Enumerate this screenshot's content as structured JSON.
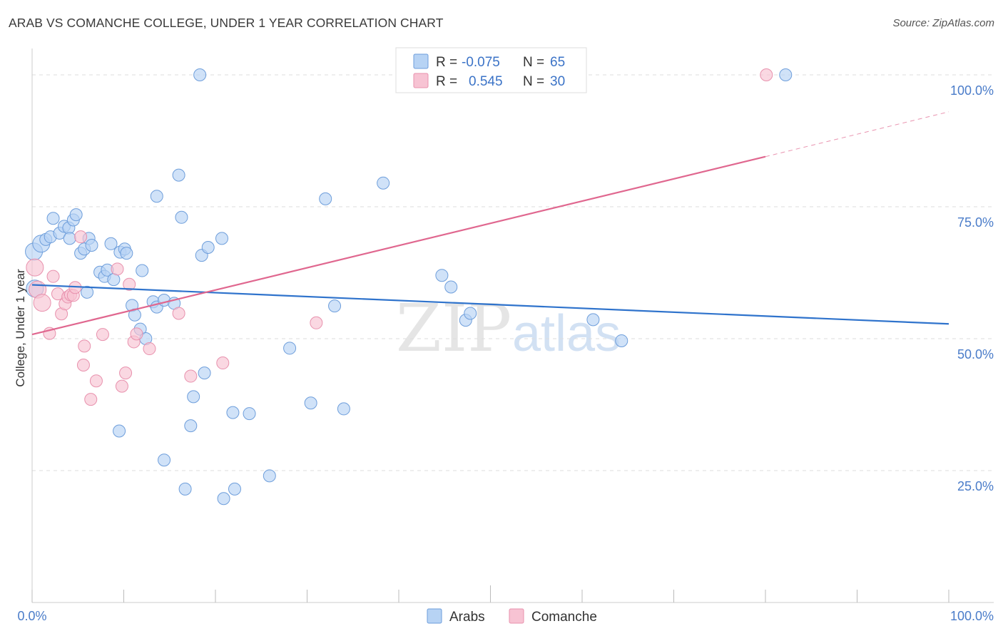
{
  "header": {
    "title": "ARAB VS COMANCHE COLLEGE, UNDER 1 YEAR CORRELATION CHART",
    "source": "Source: ZipAtlas.com"
  },
  "watermark": {
    "part1": "ZIP",
    "part2": "atlas"
  },
  "legend": {
    "r_label": "R =",
    "n_label": "N =",
    "arabs": {
      "r": "-0.075",
      "n": "65"
    },
    "comanche": {
      "r": "0.545",
      "n": "30"
    }
  },
  "bottom_legend": {
    "arabs": "Arabs",
    "comanche": "Comanche"
  },
  "colors": {
    "arabs_fill": "#b7d3f4",
    "arabs_stroke": "#6e9edb",
    "arabs_line": "#2f73cc",
    "comanche_fill": "#f7c3d3",
    "comanche_stroke": "#e891ad",
    "comanche_line": "#e0678f",
    "tick_text": "#4a7cc9",
    "grid": "#dddddd"
  },
  "chart_data": {
    "type": "scatter",
    "title": "ARAB VS COMANCHE COLLEGE, UNDER 1 YEAR CORRELATION CHART",
    "xlabel": "",
    "ylabel": "College, Under 1 year",
    "xlim": [
      0,
      100
    ],
    "ylim": [
      0,
      105
    ],
    "x_tick_labels": [
      "0.0%",
      "100.0%"
    ],
    "y_ticks": [
      25,
      50,
      75,
      100
    ],
    "y_tick_labels": [
      "25.0%",
      "50.0%",
      "75.0%",
      "100.0%"
    ],
    "grid": "horizontal dashed",
    "legend_placement": "top-center",
    "series": [
      {
        "name": "Arabs",
        "r": -0.075,
        "n": 65,
        "trend": {
          "x": [
            0,
            100
          ],
          "y": [
            60.2,
            52.8
          ]
        },
        "points": [
          [
            0.2,
            66.5
          ],
          [
            0.3,
            59.5
          ],
          [
            1.0,
            68.0
          ],
          [
            1.5,
            68.8
          ],
          [
            2.0,
            69.3
          ],
          [
            2.3,
            72.8
          ],
          [
            3.0,
            70.0
          ],
          [
            3.5,
            71.3
          ],
          [
            4.0,
            71.0
          ],
          [
            4.1,
            69.0
          ],
          [
            4.5,
            72.5
          ],
          [
            4.8,
            73.5
          ],
          [
            5.3,
            66.2
          ],
          [
            5.7,
            67.0
          ],
          [
            6.2,
            69.0
          ],
          [
            6.5,
            67.7
          ],
          [
            6.0,
            58.8
          ],
          [
            7.4,
            62.6
          ],
          [
            7.9,
            61.8
          ],
          [
            8.2,
            63.0
          ],
          [
            8.6,
            68.0
          ],
          [
            8.9,
            61.2
          ],
          [
            9.6,
            66.4
          ],
          [
            10.1,
            67.0
          ],
          [
            10.3,
            66.2
          ],
          [
            10.9,
            56.3
          ],
          [
            11.2,
            54.5
          ],
          [
            11.8,
            51.8
          ],
          [
            12.0,
            62.9
          ],
          [
            12.4,
            50.0
          ],
          [
            13.2,
            57.0
          ],
          [
            13.6,
            56.0
          ],
          [
            14.4,
            57.3
          ],
          [
            15.5,
            56.7
          ],
          [
            9.5,
            32.5
          ],
          [
            13.6,
            77.0
          ],
          [
            16.0,
            81.0
          ],
          [
            16.3,
            73.0
          ],
          [
            17.3,
            33.5
          ],
          [
            17.6,
            39.0
          ],
          [
            18.3,
            100.0
          ],
          [
            18.5,
            65.8
          ],
          [
            18.8,
            43.5
          ],
          [
            19.2,
            67.3
          ],
          [
            20.7,
            69.0
          ],
          [
            14.4,
            27.0
          ],
          [
            16.7,
            21.5
          ],
          [
            20.9,
            19.7
          ],
          [
            21.9,
            36.0
          ],
          [
            22.1,
            21.5
          ],
          [
            23.7,
            35.8
          ],
          [
            25.9,
            24.0
          ],
          [
            28.1,
            48.2
          ],
          [
            30.4,
            37.8
          ],
          [
            32.0,
            76.5
          ],
          [
            33.0,
            56.2
          ],
          [
            34.0,
            36.7
          ],
          [
            38.3,
            79.5
          ],
          [
            44.7,
            62.0
          ],
          [
            45.7,
            59.8
          ],
          [
            47.3,
            53.5
          ],
          [
            47.8,
            54.8
          ],
          [
            61.2,
            53.6
          ],
          [
            64.3,
            49.6
          ],
          [
            82.2,
            100.0
          ]
        ]
      },
      {
        "name": "Comanche",
        "r": 0.545,
        "n": 30,
        "trend": {
          "x": [
            0,
            80
          ],
          "y": [
            50.8,
            84.5
          ]
        },
        "trend_dashed": {
          "x": [
            80,
            100
          ],
          "y": [
            84.5,
            93.0
          ]
        },
        "points": [
          [
            0.3,
            63.5
          ],
          [
            0.6,
            59.3
          ],
          [
            1.1,
            56.8
          ],
          [
            1.9,
            51.0
          ],
          [
            2.3,
            61.8
          ],
          [
            2.8,
            58.5
          ],
          [
            3.2,
            54.7
          ],
          [
            3.6,
            56.6
          ],
          [
            3.9,
            57.9
          ],
          [
            4.2,
            58.3
          ],
          [
            4.5,
            58.2
          ],
          [
            4.7,
            59.7
          ],
          [
            5.3,
            69.3
          ],
          [
            5.7,
            48.6
          ],
          [
            5.6,
            45.0
          ],
          [
            6.4,
            38.5
          ],
          [
            7.0,
            42.0
          ],
          [
            7.7,
            50.8
          ],
          [
            9.3,
            63.2
          ],
          [
            9.8,
            41.0
          ],
          [
            10.2,
            43.5
          ],
          [
            10.6,
            60.3
          ],
          [
            11.1,
            49.4
          ],
          [
            11.4,
            50.9
          ],
          [
            12.8,
            48.1
          ],
          [
            16.0,
            54.8
          ],
          [
            17.3,
            42.9
          ],
          [
            20.8,
            45.4
          ],
          [
            31.0,
            53.0
          ],
          [
            80.1,
            100.0
          ]
        ]
      }
    ]
  }
}
